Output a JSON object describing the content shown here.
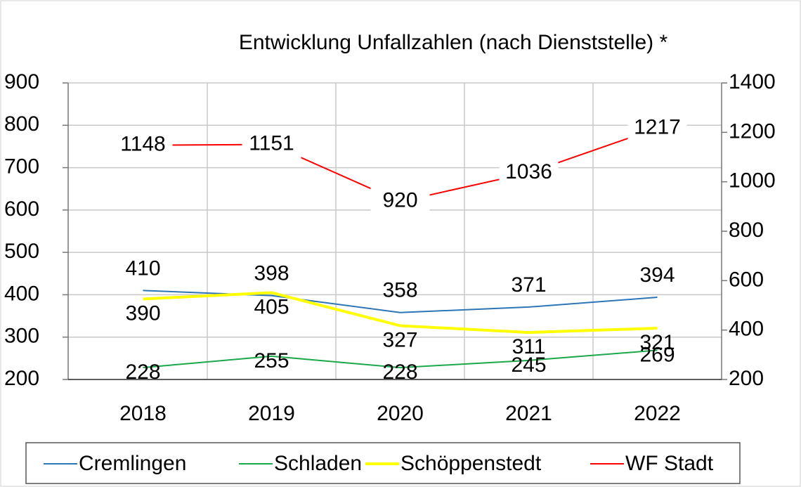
{
  "chart_data": {
    "type": "line",
    "title": "Entwicklung Unfallzahlen (nach Dienststelle) *",
    "categories": [
      "2018",
      "2019",
      "2020",
      "2021",
      "2022"
    ],
    "series": [
      {
        "name": "Cremlingen",
        "color": "#2e75b6",
        "values": [
          410,
          398,
          358,
          371,
          394
        ]
      },
      {
        "name": "Schladen",
        "color": "#1aa84a",
        "values": [
          228,
          255,
          228,
          245,
          269
        ]
      },
      {
        "name": "Schöppenstedt",
        "color": "#ffff00",
        "values": [
          390,
          405,
          327,
          311,
          321
        ]
      },
      {
        "name": "WF Stadt",
        "color": "#ff0000",
        "axis": "y2",
        "values": [
          1148,
          1151,
          920,
          1036,
          1217
        ]
      }
    ],
    "ylim": [
      200,
      900
    ],
    "yticks": [
      200,
      300,
      400,
      500,
      600,
      700,
      800,
      900
    ],
    "y2lim": [
      200,
      1400
    ],
    "y2ticks": [
      200,
      400,
      600,
      800,
      1000,
      1200,
      1400
    ],
    "grid": true,
    "legend": "bottom"
  }
}
